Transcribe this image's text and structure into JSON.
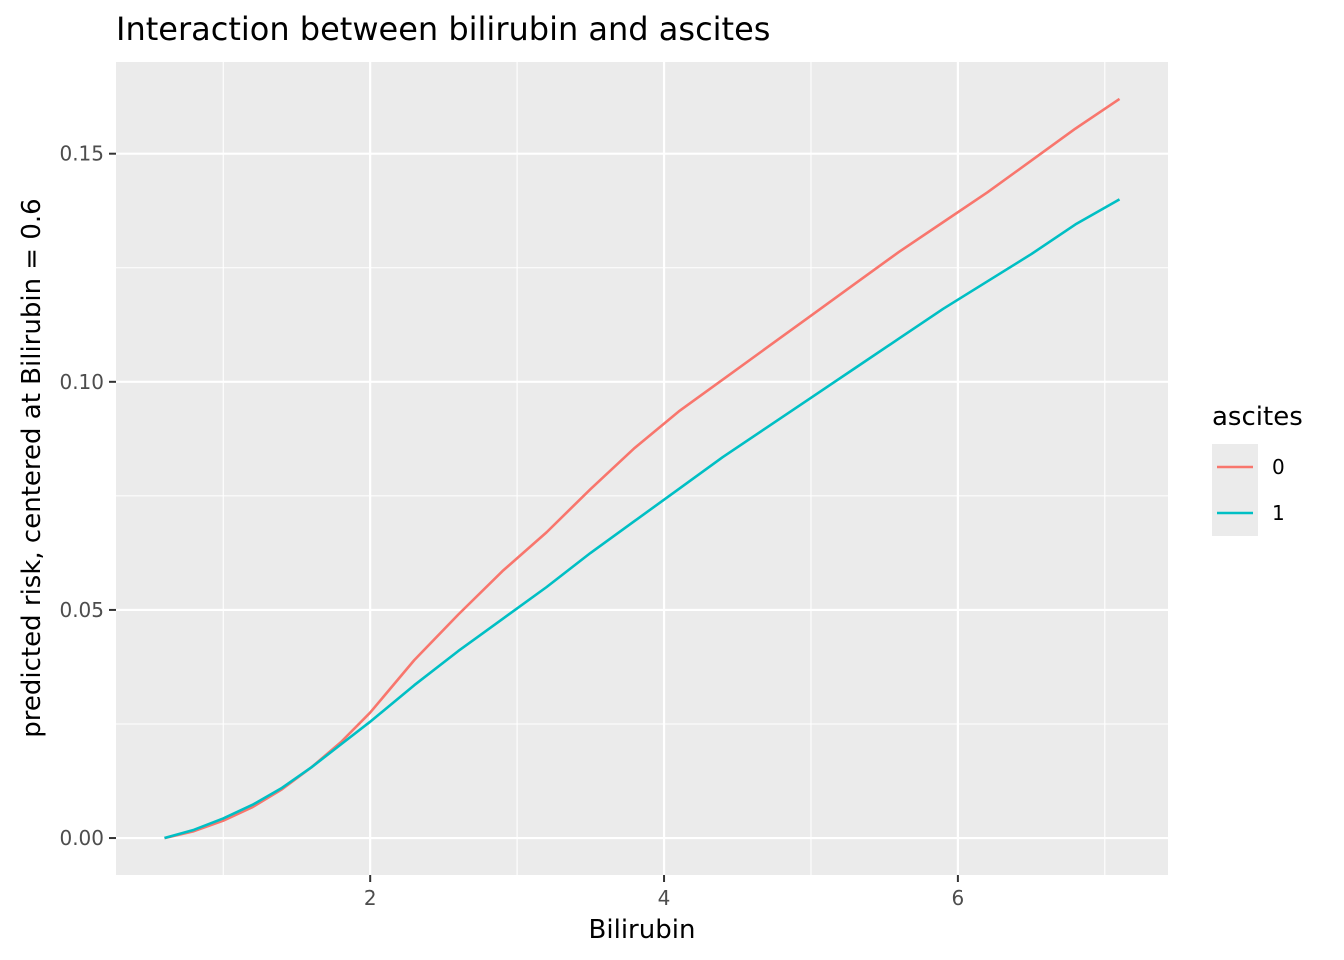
{
  "chart_data": {
    "type": "line",
    "title": "Interaction between bilirubin and ascites",
    "xlabel": "Bilirubin",
    "ylabel": "predicted risk, centered at Bilirubin = 0.6",
    "xlim": [
      0.27,
      7.43
    ],
    "ylim": [
      -0.0081,
      0.1701
    ],
    "x_ticks": [
      2,
      4,
      6
    ],
    "x_tick_labels": [
      "2",
      "4",
      "6"
    ],
    "x_minor_ticks": [
      1,
      3,
      5,
      7
    ],
    "y_ticks": [
      0.0,
      0.05,
      0.1,
      0.15
    ],
    "y_tick_labels": [
      "0.00",
      "0.05",
      "0.10",
      "0.15"
    ],
    "y_minor_ticks": [
      0.025,
      0.075,
      0.125
    ],
    "grid": true,
    "panel_background": "#EBEBEB",
    "grid_color": "#FFFFFF",
    "legend": {
      "title": "ascites",
      "position": "right",
      "entries": [
        "0",
        "1"
      ]
    },
    "series": [
      {
        "name": "0",
        "color": "#F8766D",
        "x": [
          0.6,
          0.8,
          1.0,
          1.2,
          1.4,
          1.6,
          1.8,
          2.0,
          2.3,
          2.6,
          2.9,
          3.2,
          3.5,
          3.8,
          4.1,
          4.4,
          4.7,
          5.0,
          5.3,
          5.6,
          5.9,
          6.2,
          6.5,
          6.8,
          7.1
        ],
        "values": [
          0.0,
          0.0015,
          0.0038,
          0.0068,
          0.0107,
          0.0155,
          0.021,
          0.0275,
          0.039,
          0.049,
          0.0585,
          0.067,
          0.0765,
          0.0855,
          0.0935,
          0.1005,
          0.1075,
          0.1145,
          0.1215,
          0.1285,
          0.135,
          0.1415,
          0.1485,
          0.1555,
          0.162
        ]
      },
      {
        "name": "1",
        "color": "#00BFC4",
        "x": [
          0.6,
          0.8,
          1.0,
          1.2,
          1.4,
          1.6,
          1.8,
          2.0,
          2.3,
          2.6,
          2.9,
          3.2,
          3.5,
          3.8,
          4.1,
          4.4,
          4.7,
          5.0,
          5.3,
          5.6,
          5.9,
          6.2,
          6.5,
          6.8,
          7.1
        ],
        "values": [
          0.0,
          0.0018,
          0.0043,
          0.0073,
          0.011,
          0.0155,
          0.0205,
          0.0255,
          0.0335,
          0.041,
          0.048,
          0.055,
          0.0625,
          0.0695,
          0.0765,
          0.0835,
          0.09,
          0.0965,
          0.103,
          0.1095,
          0.116,
          0.122,
          0.128,
          0.1345,
          0.14
        ]
      }
    ]
  }
}
